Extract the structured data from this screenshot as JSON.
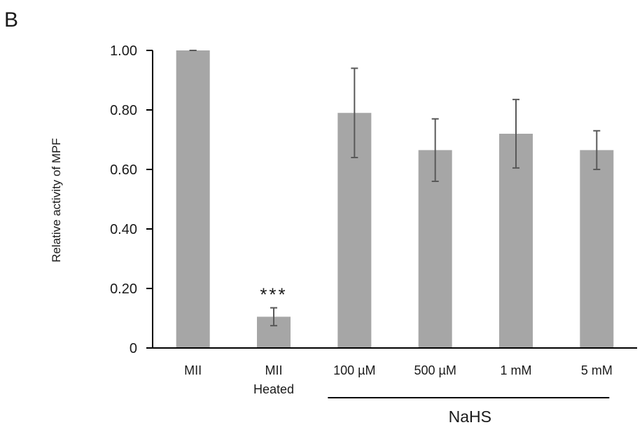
{
  "panel_label": "B",
  "chart_data": {
    "type": "bar",
    "categories": [
      "MII",
      "MII\nHeated",
      "100 µM",
      "500 µM",
      "1 mM",
      "5 mM"
    ],
    "values": [
      1.0,
      0.105,
      0.79,
      0.665,
      0.72,
      0.665
    ],
    "errors": [
      0.0,
      0.03,
      0.15,
      0.105,
      0.115,
      0.065
    ],
    "significance": [
      "",
      "***",
      "",
      "",
      "",
      ""
    ],
    "ylabel": "Relative activity of MPF",
    "xlabel": "",
    "ylim": [
      0,
      1.0
    ],
    "yticks": [
      0,
      0.2,
      0.4,
      0.6,
      0.8,
      1.0
    ],
    "ytick_labels": [
      "0",
      "0.20",
      "0.40",
      "0.60",
      "0.80",
      "1.00"
    ],
    "group_label": {
      "text": "NaHS",
      "from_index": 2,
      "to_index": 5
    },
    "grid": false,
    "legend": "none",
    "bar_color": "#a6a6a6",
    "error_color": "#595959",
    "axis_color": "#000000"
  }
}
